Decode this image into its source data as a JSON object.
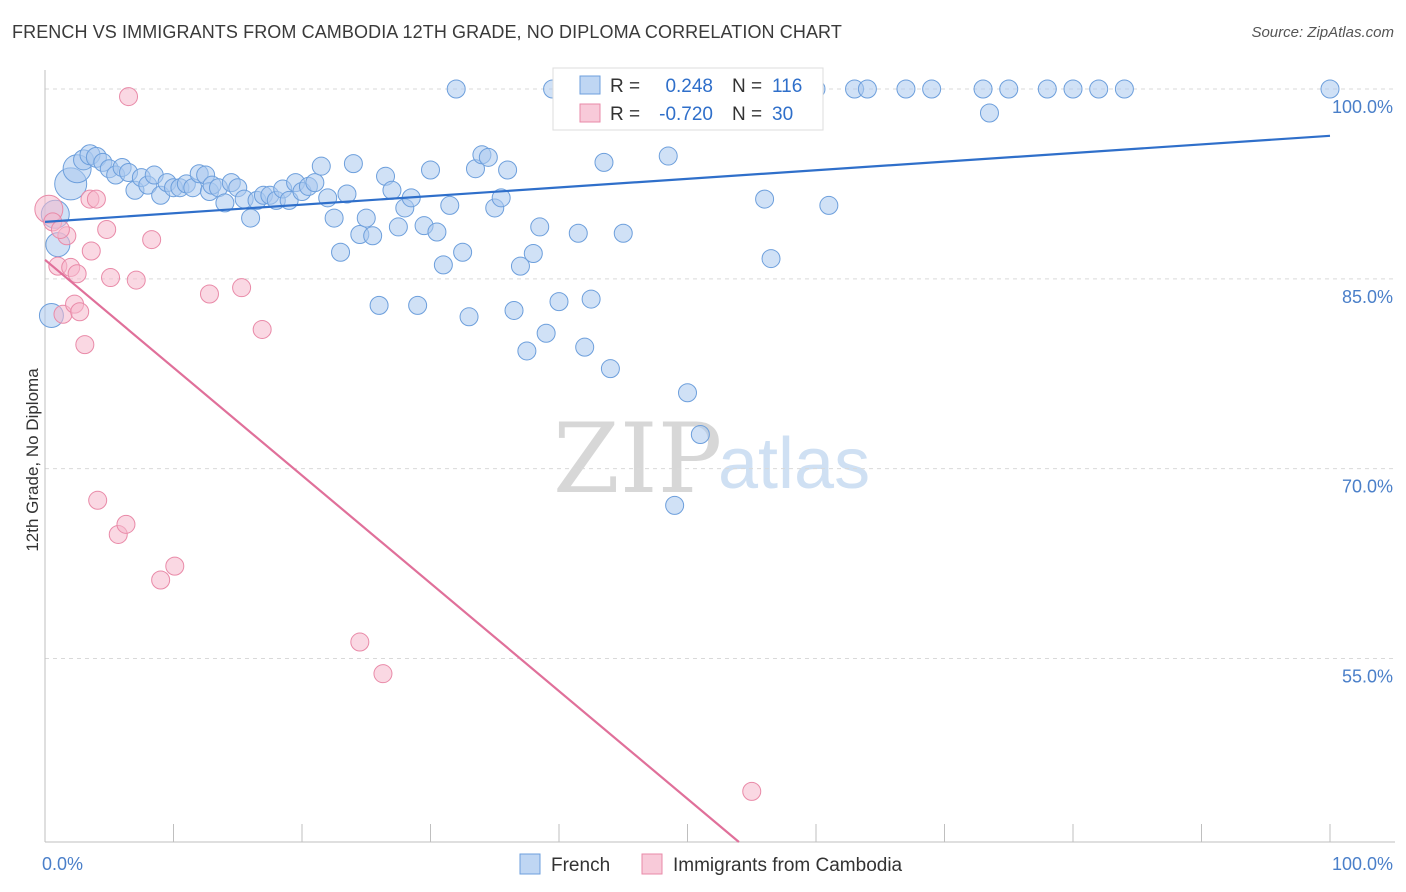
{
  "title": "FRENCH VS IMMIGRANTS FROM CAMBODIA 12TH GRADE, NO DIPLOMA CORRELATION CHART",
  "source": "Source: ZipAtlas.com",
  "watermark": {
    "zip": "ZIP",
    "atlas": "atlas"
  },
  "colors": {
    "blue_fill": "#a9c8ef",
    "blue_stroke": "#6d9fdc",
    "blue_line": "#2f6fca",
    "pink_fill": "#f5b8cc",
    "pink_stroke": "#e98aa8",
    "pink_line": "#e0709a",
    "grid": "#d9d9d9",
    "tick_label": "#4a7fc9"
  },
  "chart_data": {
    "type": "scatter",
    "ylabel": "12th Grade, No Diploma",
    "xlim": [
      0,
      100
    ],
    "ylim": [
      40.5,
      101.5
    ],
    "x_tick_labels": [
      {
        "value": 0,
        "label": "0.0%"
      },
      {
        "value": 100,
        "label": "100.0%"
      }
    ],
    "y_ticks": [
      {
        "value": 100,
        "label": "100.0%"
      },
      {
        "value": 85,
        "label": "85.0%"
      },
      {
        "value": 70,
        "label": "70.0%"
      },
      {
        "value": 55,
        "label": "55.0%"
      }
    ],
    "legend": {
      "rows": [
        {
          "r_label": "R =",
          "r_value": "0.248",
          "n_label": "N =",
          "n_value": "116",
          "series": "blue"
        },
        {
          "r_label": "R =",
          "r_value": "-0.720",
          "n_label": "N =",
          "n_value": "30",
          "series": "pink"
        }
      ]
    },
    "series": [
      {
        "name": "French",
        "color": "blue",
        "trend": {
          "x": [
            0,
            100
          ],
          "y": [
            89.5,
            96.3
          ]
        },
        "points": [
          [
            0.5,
            82.1,
            12
          ],
          [
            0.8,
            90.1,
            14
          ],
          [
            1,
            87.7,
            12
          ],
          [
            2,
            92.5,
            16
          ],
          [
            2.5,
            93.7,
            14
          ],
          [
            3,
            94.4,
            10
          ],
          [
            3.5,
            94.8,
            10
          ],
          [
            4,
            94.6,
            10
          ],
          [
            4.5,
            94.2,
            9
          ],
          [
            5,
            93.7,
            9
          ],
          [
            5.5,
            93.2,
            9
          ],
          [
            6,
            93.8,
            9
          ],
          [
            6.5,
            93.4,
            9
          ],
          [
            7,
            92.0,
            9
          ],
          [
            7.5,
            93.0,
            9
          ],
          [
            8,
            92.4,
            9
          ],
          [
            8.5,
            93.2,
            9
          ],
          [
            9,
            91.6,
            9
          ],
          [
            9.5,
            92.6,
            9
          ],
          [
            10,
            92.2,
            9
          ],
          [
            10.5,
            92.2,
            9
          ],
          [
            11,
            92.5,
            9
          ],
          [
            11.5,
            92.2,
            9
          ],
          [
            12,
            93.3,
            9
          ],
          [
            12.5,
            93.2,
            9
          ],
          [
            12.8,
            91.9,
            9
          ],
          [
            13,
            92.4,
            9
          ],
          [
            13.5,
            92.2,
            9
          ],
          [
            14,
            91.0,
            9
          ],
          [
            14.5,
            92.6,
            9
          ],
          [
            15,
            92.2,
            9
          ],
          [
            15.5,
            91.3,
            9
          ],
          [
            16,
            89.8,
            9
          ],
          [
            16.5,
            91.2,
            9
          ],
          [
            17,
            91.6,
            9
          ],
          [
            17.5,
            91.6,
            9
          ],
          [
            18,
            91.2,
            9
          ],
          [
            18.5,
            92.1,
            9
          ],
          [
            19,
            91.2,
            9
          ],
          [
            19.5,
            92.6,
            9
          ],
          [
            20,
            91.9,
            9
          ],
          [
            20.5,
            92.3,
            9
          ],
          [
            21,
            92.6,
            9
          ],
          [
            21.5,
            93.9,
            9
          ],
          [
            22,
            91.4,
            9
          ],
          [
            22.5,
            89.8,
            9
          ],
          [
            23,
            87.1,
            9
          ],
          [
            23.5,
            91.7,
            9
          ],
          [
            24,
            94.1,
            9
          ],
          [
            24.5,
            88.5,
            9
          ],
          [
            25,
            89.8,
            9
          ],
          [
            25.5,
            88.4,
            9
          ],
          [
            26,
            82.9,
            9
          ],
          [
            26.5,
            93.1,
            9
          ],
          [
            27,
            92.0,
            9
          ],
          [
            27.5,
            89.1,
            9
          ],
          [
            28,
            90.6,
            9
          ],
          [
            28.5,
            91.4,
            9
          ],
          [
            29,
            82.9,
            9
          ],
          [
            29.5,
            89.2,
            9
          ],
          [
            30,
            93.6,
            9
          ],
          [
            30.5,
            88.7,
            9
          ],
          [
            31,
            86.1,
            9
          ],
          [
            31.5,
            90.8,
            9
          ],
          [
            32,
            100,
            9
          ],
          [
            32.5,
            87.1,
            9
          ],
          [
            33,
            82.0,
            9
          ],
          [
            33.5,
            93.7,
            9
          ],
          [
            34,
            94.8,
            9
          ],
          [
            34.5,
            94.6,
            9
          ],
          [
            35,
            90.6,
            9
          ],
          [
            35.5,
            91.4,
            9
          ],
          [
            36,
            93.6,
            9
          ],
          [
            36.5,
            82.5,
            9
          ],
          [
            37,
            86.0,
            9
          ],
          [
            37.5,
            79.3,
            9
          ],
          [
            38,
            87.0,
            9
          ],
          [
            38.5,
            89.1,
            9
          ],
          [
            39,
            80.7,
            9
          ],
          [
            39.5,
            100,
            9
          ],
          [
            40,
            83.2,
            9
          ],
          [
            41,
            100,
            9
          ],
          [
            41.5,
            88.6,
            9
          ],
          [
            42,
            79.6,
            9
          ],
          [
            42.5,
            83.4,
            9
          ],
          [
            43,
            100,
            9
          ],
          [
            43.5,
            94.2,
            9
          ],
          [
            44,
            77.9,
            9
          ],
          [
            44.5,
            100,
            9
          ],
          [
            45,
            88.6,
            9
          ],
          [
            47,
            100,
            9
          ],
          [
            48,
            100,
            9
          ],
          [
            48.5,
            94.7,
            9
          ],
          [
            49,
            67.1,
            9
          ],
          [
            50,
            76.0,
            9
          ],
          [
            51,
            72.7,
            9
          ],
          [
            52,
            100,
            9
          ],
          [
            53,
            100,
            9
          ],
          [
            55,
            100,
            9
          ],
          [
            56,
            91.3,
            9
          ],
          [
            56.5,
            86.6,
            9
          ],
          [
            58,
            100,
            9
          ],
          [
            60,
            100,
            9
          ],
          [
            61,
            90.8,
            9
          ],
          [
            63,
            100,
            9
          ],
          [
            64,
            100,
            9
          ],
          [
            67,
            100,
            9
          ],
          [
            69,
            100,
            9
          ],
          [
            73,
            100,
            9
          ],
          [
            73.5,
            98.1,
            9
          ],
          [
            75,
            100,
            9
          ],
          [
            78,
            100,
            9
          ],
          [
            80,
            100,
            9
          ],
          [
            82,
            100,
            9
          ],
          [
            84,
            100,
            9
          ],
          [
            100,
            100,
            9
          ]
        ]
      },
      {
        "name": "Immigrants from Cambodia",
        "color": "pink",
        "trend": {
          "x": [
            0,
            54
          ],
          "y": [
            86.5,
            40.5
          ]
        },
        "points": [
          [
            0.3,
            90.5,
            14
          ],
          [
            0.6,
            89.5,
            9
          ],
          [
            1,
            86.0,
            9
          ],
          [
            1.4,
            82.2,
            9
          ],
          [
            1.7,
            88.4,
            9
          ],
          [
            2,
            85.9,
            9
          ],
          [
            2.3,
            83.0,
            9
          ],
          [
            2.5,
            85.4,
            9
          ],
          [
            2.7,
            82.4,
            9
          ],
          [
            3.1,
            79.8,
            9
          ],
          [
            3.5,
            91.3,
            9
          ],
          [
            3.6,
            87.2,
            9
          ],
          [
            4,
            91.3,
            9
          ],
          [
            4.1,
            67.5,
            9
          ],
          [
            4.8,
            88.9,
            9
          ],
          [
            5.1,
            85.1,
            9
          ],
          [
            5.7,
            64.8,
            9
          ],
          [
            6.3,
            65.6,
            9
          ],
          [
            6.5,
            99.4,
            9
          ],
          [
            7.1,
            84.9,
            9
          ],
          [
            8.3,
            88.1,
            9
          ],
          [
            9,
            61.2,
            9
          ],
          [
            10.1,
            62.3,
            9
          ],
          [
            12.8,
            83.8,
            9
          ],
          [
            15.3,
            84.3,
            9
          ],
          [
            16.9,
            81.0,
            9
          ],
          [
            24.5,
            56.3,
            9
          ],
          [
            26.3,
            53.8,
            9
          ],
          [
            55,
            44.5,
            9
          ],
          [
            1.2,
            88.9,
            9
          ]
        ]
      }
    ],
    "bottom_legend": [
      {
        "label": "French",
        "color": "blue"
      },
      {
        "label": "Immigrants from Cambodia",
        "color": "pink"
      }
    ]
  }
}
